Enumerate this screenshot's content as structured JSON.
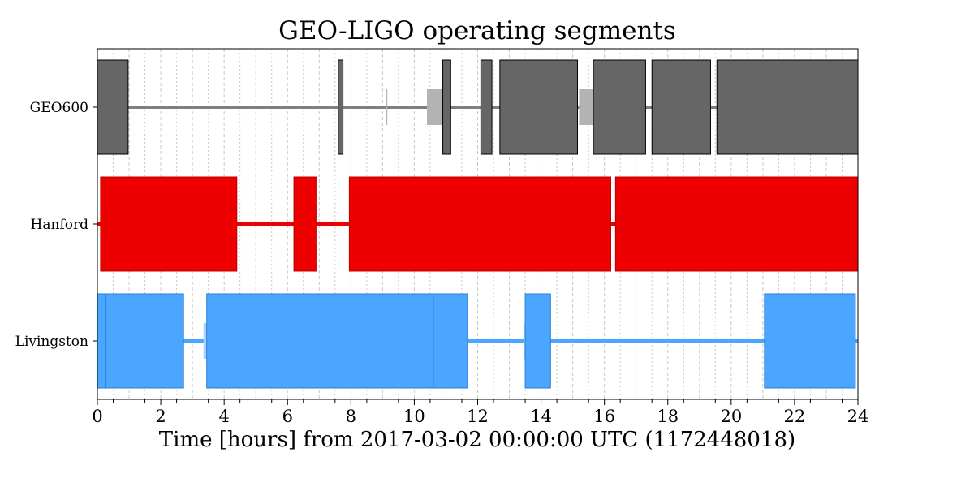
{
  "chart_data": {
    "type": "segments",
    "title": "GEO-LIGO operating segments",
    "xlabel": "Time [hours] from 2017-03-02 00:00:00 UTC (1172448018)",
    "xlim": [
      0,
      24
    ],
    "xticks": [
      "0",
      "2",
      "4",
      "6",
      "8",
      "10",
      "12",
      "14",
      "16",
      "18",
      "20",
      "22",
      "24"
    ],
    "grid": true,
    "rows": [
      {
        "name": "GEO600",
        "color": "#666666",
        "known_color": "#7f7f7f",
        "partial_color": "#b3b3b3",
        "known": [
          [
            0,
            24
          ]
        ],
        "partial": [
          [
            9.1,
            9.15
          ],
          [
            10.4,
            10.9
          ],
          [
            15.2,
            15.65
          ]
        ],
        "active": [
          [
            0,
            0.97
          ],
          [
            7.6,
            7.75
          ],
          [
            10.9,
            11.15
          ],
          [
            12.1,
            12.45
          ],
          [
            12.7,
            15.15
          ],
          [
            15.65,
            17.3
          ],
          [
            17.5,
            19.35
          ],
          [
            19.55,
            24
          ]
        ]
      },
      {
        "name": "Hanford",
        "color": "#ee0000",
        "known_color": "#ee0000",
        "partial_color": "#f58080",
        "known": [
          [
            0,
            24
          ]
        ],
        "partial": [],
        "active": [
          [
            0.1,
            4.4
          ],
          [
            6.2,
            6.9
          ],
          [
            7.95,
            16.2
          ],
          [
            16.35,
            24
          ]
        ]
      },
      {
        "name": "Livingston",
        "color": "#4ba6ff",
        "known_color": "#4ba6ff",
        "partial_color": "#a5d2ff",
        "known": [
          [
            0,
            24
          ]
        ],
        "partial": [
          [
            3.35,
            3.45
          ],
          [
            13.45,
            13.5
          ]
        ],
        "active": [
          [
            0,
            0.25
          ],
          [
            0.25,
            2.72
          ],
          [
            3.45,
            10.6
          ],
          [
            10.6,
            11.68
          ],
          [
            13.5,
            14.3
          ],
          [
            21.05,
            23.92
          ]
        ]
      }
    ]
  }
}
